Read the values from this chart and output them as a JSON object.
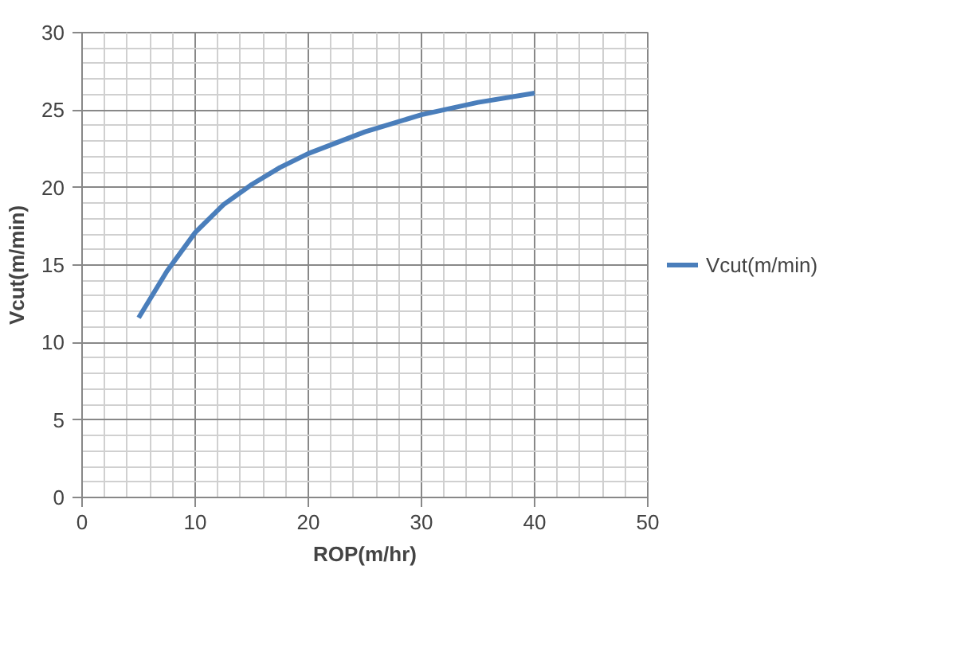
{
  "chart_data": {
    "type": "line",
    "xlabel": "ROP(m/hr)",
    "ylabel": "Vcut(m/min)",
    "x": [
      5,
      7.5,
      10,
      12.5,
      15,
      17.5,
      20,
      25,
      30,
      35,
      40
    ],
    "series": [
      {
        "name": "Vcut(m/min)",
        "color": "#4a7ebb",
        "values": [
          11.6,
          14.6,
          17.1,
          18.9,
          20.2,
          21.3,
          22.2,
          23.6,
          24.7,
          25.5,
          26.1
        ]
      }
    ],
    "xlim": [
      0,
      50
    ],
    "ylim": [
      0,
      30
    ],
    "xticks": [
      0,
      10,
      20,
      30,
      40,
      50
    ],
    "yticks": [
      0,
      5,
      10,
      15,
      20,
      25,
      30
    ],
    "grid": true,
    "legend": "right",
    "marker": "none",
    "line_style": "solid"
  }
}
